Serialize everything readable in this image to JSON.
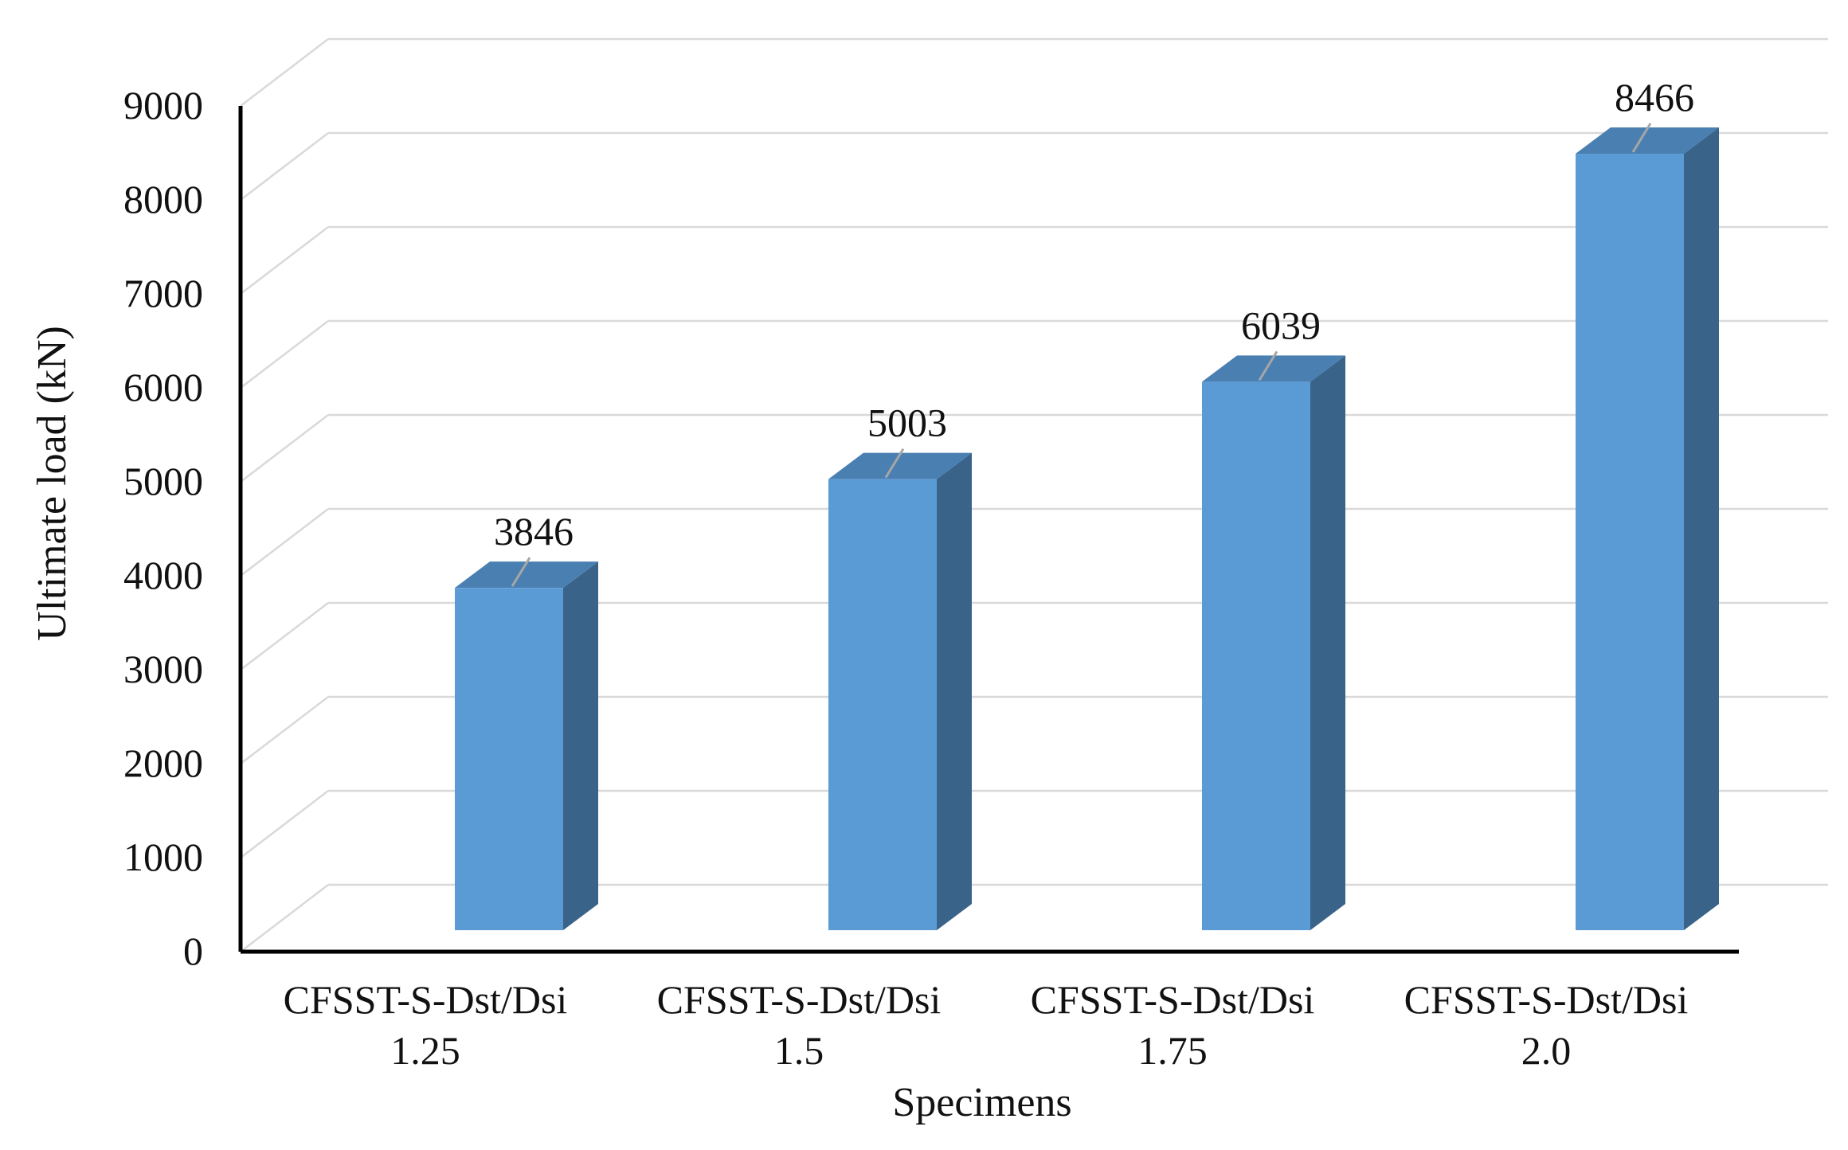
{
  "chart_data": {
    "type": "bar",
    "categories": [
      [
        "CFSST-S-Dst/Dsi",
        "1.25"
      ],
      [
        "CFSST-S-Dst/Dsi",
        "1.5"
      ],
      [
        "CFSST-S-Dst/Dsi",
        "1.75"
      ],
      [
        "CFSST-S-Dst/Dsi",
        "2.0"
      ]
    ],
    "values": [
      3846,
      5003,
      6039,
      8466
    ],
    "data_labels": [
      "3846",
      "5003",
      "6039",
      "8466"
    ],
    "xlabel": "Specimens",
    "ylabel": "Ultimate load (kN)",
    "ylim": [
      0,
      9000
    ],
    "yticks": [
      0,
      1000,
      2000,
      3000,
      4000,
      5000,
      6000,
      7000,
      8000,
      9000
    ],
    "grid": true,
    "legend": false,
    "style": "3d-column",
    "colors": {
      "front": "#5B9BD5",
      "side": "#3A6389",
      "top": "#4A7FB2",
      "grid": "#D9D9D9",
      "axis": "#000000"
    }
  }
}
